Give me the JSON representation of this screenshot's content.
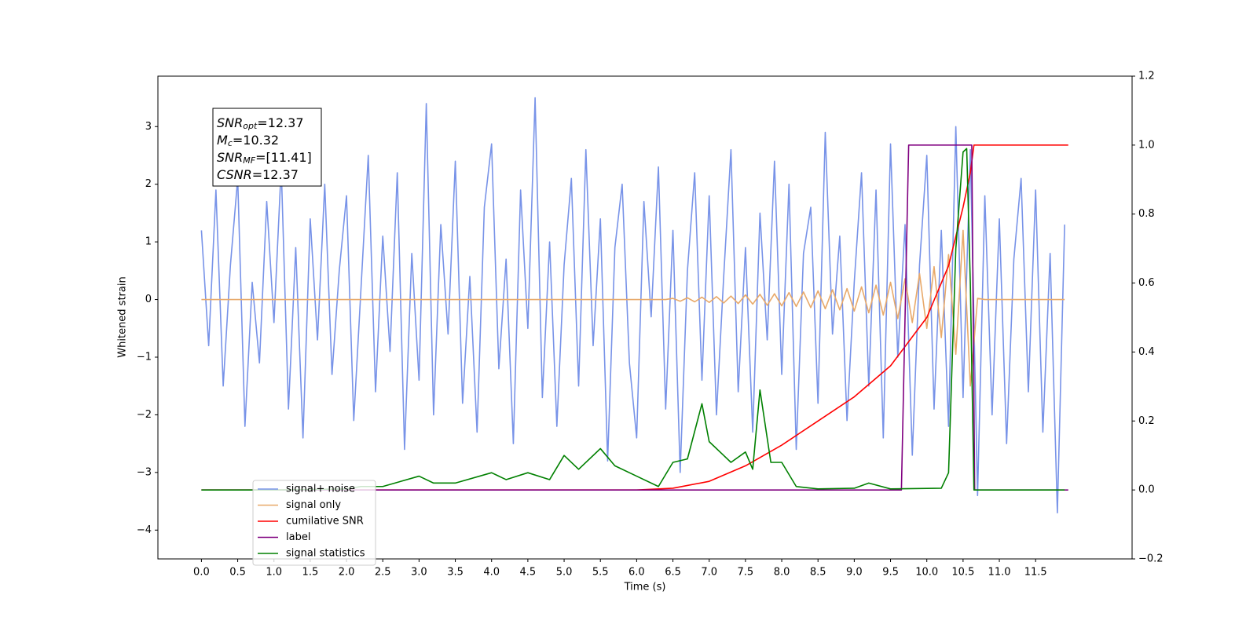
{
  "chart_data": {
    "type": "line",
    "xlabel": "Time (s)",
    "ylabel": "Whitened strain",
    "xlim": [
      -0.6,
      12.83
    ],
    "ylim": [
      -4.5,
      3.875
    ],
    "y2lim": [
      -0.2,
      1.2
    ],
    "xticks": [
      {
        "value": 0,
        "label": "0.0"
      },
      0.5,
      {
        "value": 1,
        "label": "1.0"
      },
      1.5,
      {
        "value": 2,
        "label": "2.0"
      },
      2.5,
      {
        "value": 3,
        "label": "3.0"
      },
      3.5,
      {
        "value": 4,
        "label": "4.0"
      },
      4.5,
      {
        "value": 5,
        "label": "5.0"
      },
      5.5,
      {
        "value": 6,
        "label": "6.0"
      },
      6.5,
      {
        "value": 7,
        "label": "7.0"
      },
      7.5,
      {
        "value": 8,
        "label": "8.0"
      },
      8.5,
      {
        "value": 9,
        "label": "9.0"
      },
      9.5,
      {
        "value": 10,
        "label": "10.0"
      },
      10.5,
      {
        "value": 11,
        "label": "11.0"
      },
      11.5
    ],
    "yticks": [
      {
        "value": -4,
        "label": "−4"
      },
      {
        "value": -3,
        "label": "−3"
      },
      {
        "value": -2,
        "label": "−2"
      },
      {
        "value": -1,
        "label": "−1"
      },
      0,
      1,
      2,
      3
    ],
    "y2ticks": [
      {
        "value": -0.2,
        "label": "−0.2"
      },
      {
        "value": 0,
        "label": "0.0"
      },
      0.2,
      0.4,
      0.6,
      0.8,
      {
        "value": 1,
        "label": "1.0"
      },
      1.2
    ],
    "legend": "lower left",
    "annotations": [
      {
        "symbol": "SNR",
        "sub": "opt",
        "text": "=12.37"
      },
      {
        "symbol": "M",
        "sub": "c",
        "text": "=10.32"
      },
      {
        "symbol": "SNR",
        "sub": "MF",
        "text": "=[11.41]"
      },
      {
        "symbol": "CSNR",
        "sub": "",
        "text": "=12.37"
      }
    ],
    "x": [
      0,
      0.1,
      0.2,
      0.3,
      0.4,
      0.5,
      0.6,
      0.7,
      0.8,
      0.9,
      1,
      1.1,
      1.2,
      1.3,
      1.4,
      1.5,
      1.6,
      1.7,
      1.8,
      1.9,
      2,
      2.1,
      2.2,
      2.3,
      2.4,
      2.5,
      2.6,
      2.7,
      2.8,
      2.9,
      3,
      3.1,
      3.2,
      3.3,
      3.4,
      3.5,
      3.6,
      3.7,
      3.8,
      3.9,
      4,
      4.1,
      4.2,
      4.3,
      4.4,
      4.5,
      4.6,
      4.7,
      4.8,
      4.9,
      5,
      5.1,
      5.2,
      5.3,
      5.4,
      5.5,
      5.6,
      5.7,
      5.8,
      5.9,
      6,
      6.1,
      6.2,
      6.3,
      6.4,
      6.5,
      6.6,
      6.7,
      6.8,
      6.9,
      7,
      7.1,
      7.2,
      7.3,
      7.4,
      7.5,
      7.6,
      7.7,
      7.8,
      7.9,
      8,
      8.1,
      8.2,
      8.3,
      8.4,
      8.5,
      8.6,
      8.7,
      8.8,
      8.9,
      9,
      9.1,
      9.2,
      9.3,
      9.4,
      9.5,
      9.6,
      9.7,
      9.8,
      9.9,
      10,
      10.1,
      10.2,
      10.3,
      10.4,
      10.5,
      10.6,
      10.7,
      10.8,
      10.9,
      11,
      11.1,
      11.2,
      11.3,
      11.4,
      11.5,
      11.6,
      11.7,
      11.8,
      11.9
    ],
    "series": [
      {
        "name": "signal+ noise",
        "color": "#7893e8",
        "axis": "y",
        "values": [
          1.2,
          -0.8,
          1.9,
          -1.5,
          0.6,
          2.1,
          -2.2,
          0.3,
          -1.1,
          1.7,
          -0.4,
          2.3,
          -1.9,
          0.9,
          -2.4,
          1.4,
          -0.7,
          2.0,
          -1.3,
          0.5,
          1.8,
          -2.1,
          0.2,
          2.5,
          -1.6,
          1.1,
          -0.9,
          2.2,
          -2.6,
          0.8,
          -1.4,
          3.4,
          -2.0,
          1.3,
          -0.6,
          2.4,
          -1.8,
          0.4,
          -2.3,
          1.6,
          2.7,
          -1.2,
          0.7,
          -2.5,
          1.9,
          -0.5,
          3.5,
          -1.7,
          1.0,
          -2.2,
          0.6,
          2.1,
          -1.5,
          2.6,
          -0.8,
          1.4,
          -2.8,
          0.9,
          2.0,
          -1.1,
          -2.4,
          1.7,
          -0.3,
          2.3,
          -1.9,
          1.2,
          -3.0,
          0.5,
          2.2,
          -1.4,
          1.8,
          -2.0,
          0.4,
          2.6,
          -1.6,
          0.9,
          -2.3,
          1.5,
          -0.7,
          2.4,
          -1.3,
          2.0,
          -2.6,
          0.8,
          1.6,
          -1.8,
          2.9,
          -0.6,
          1.1,
          -2.1,
          0.3,
          2.2,
          -1.5,
          1.9,
          -2.4,
          2.7,
          -1.0,
          1.3,
          -2.7,
          0.6,
          2.5,
          -1.9,
          1.2,
          -2.2,
          3.0,
          -1.7,
          2.6,
          -3.4,
          1.8,
          -2.0,
          1.4,
          -2.5,
          0.7,
          2.1,
          -1.6,
          1.9,
          -2.3,
          0.8,
          -3.7,
          1.3
        ]
      },
      {
        "name": "signal only",
        "color": "#e8a96a",
        "axis": "y",
        "values": [
          0,
          0,
          0,
          0,
          0,
          0,
          0,
          0,
          0,
          0,
          0,
          0,
          0,
          0,
          0,
          0,
          0,
          0,
          0,
          0,
          0,
          0,
          0,
          0,
          0,
          0,
          0,
          0,
          0,
          0,
          0,
          0,
          0,
          0,
          0,
          0,
          0,
          0,
          0,
          0,
          0,
          0,
          0,
          0,
          0,
          0,
          0,
          0,
          0,
          0,
          0,
          0,
          0,
          0,
          0,
          0,
          0,
          0,
          0,
          0,
          0,
          0,
          0,
          0,
          0,
          0.02,
          -0.03,
          0.03,
          -0.04,
          0.04,
          -0.05,
          0.05,
          -0.06,
          0.06,
          -0.07,
          0.08,
          -0.08,
          0.09,
          -0.1,
          0.1,
          -0.11,
          0.12,
          -0.12,
          0.13,
          -0.14,
          0.15,
          -0.16,
          0.17,
          -0.18,
          0.19,
          -0.2,
          0.22,
          -0.23,
          0.25,
          -0.27,
          0.3,
          -0.33,
          0.36,
          -0.4,
          0.45,
          -0.5,
          0.57,
          -0.66,
          0.78,
          -0.95,
          1.2,
          -1.5,
          0.02,
          0,
          0,
          0,
          0,
          0,
          0,
          0,
          0,
          0,
          0,
          0,
          0
        ]
      },
      {
        "name": "cumilative SNR",
        "color": "#ff0000",
        "axis": "y2",
        "x": [
          0,
          6.0,
          6.5,
          7.0,
          7.5,
          8.0,
          8.5,
          9.0,
          9.5,
          10.0,
          10.3,
          10.5,
          10.6,
          10.65,
          11.95
        ],
        "values": [
          0,
          0,
          0.005,
          0.025,
          0.07,
          0.13,
          0.2,
          0.27,
          0.36,
          0.5,
          0.65,
          0.82,
          0.92,
          1.0,
          1.0
        ]
      },
      {
        "name": "label",
        "color": "#800080",
        "axis": "y2",
        "x": [
          0,
          9.65,
          9.75,
          10.62,
          10.66,
          11.95
        ],
        "values": [
          0,
          0,
          1,
          1,
          0,
          0
        ]
      },
      {
        "name": "signal statistics",
        "color": "#008000",
        "axis": "y2",
        "x": [
          0,
          1.0,
          2.0,
          2.2,
          2.5,
          3.0,
          3.2,
          3.5,
          4.0,
          4.2,
          4.5,
          4.8,
          5.0,
          5.2,
          5.5,
          5.7,
          6.0,
          6.3,
          6.5,
          6.7,
          6.9,
          7.0,
          7.2,
          7.3,
          7.5,
          7.6,
          7.7,
          7.85,
          8.0,
          8.2,
          8.5,
          9.0,
          9.2,
          9.5,
          10.2,
          10.3,
          10.4,
          10.5,
          10.55,
          10.6,
          10.65,
          11.9
        ],
        "values": [
          0,
          0,
          0.003,
          0.01,
          0.01,
          0.04,
          0.02,
          0.02,
          0.05,
          0.03,
          0.05,
          0.03,
          0.1,
          0.06,
          0.12,
          0.07,
          0.04,
          0.01,
          0.08,
          0.09,
          0.25,
          0.14,
          0.1,
          0.08,
          0.11,
          0.06,
          0.29,
          0.08,
          0.08,
          0.01,
          0.003,
          0.005,
          0.02,
          0.003,
          0.005,
          0.05,
          0.7,
          0.98,
          0.99,
          0.6,
          0,
          0
        ]
      }
    ]
  }
}
